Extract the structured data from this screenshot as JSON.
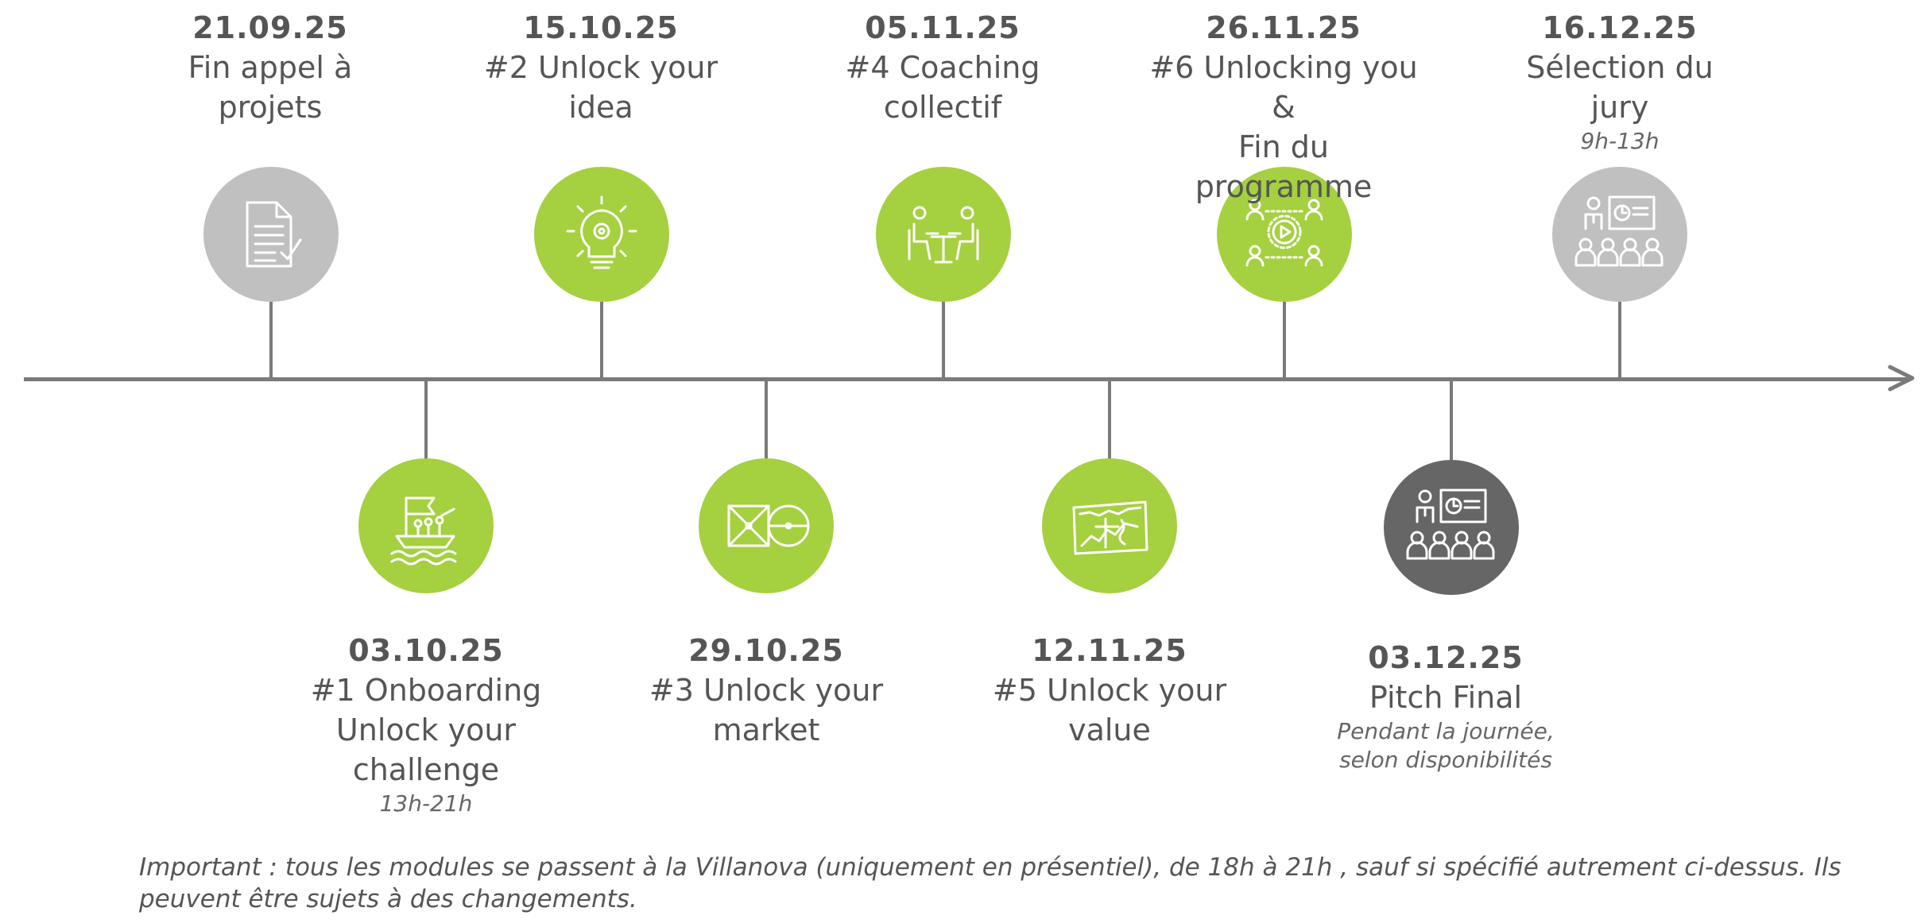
{
  "colors": {
    "green": "#a5d03f",
    "light_gray": "#c0c0c0",
    "dark_gray": "#666666",
    "axis": "#7a7a7a"
  },
  "events": [
    {
      "date": "21.09.25",
      "title": "Fin appel à\nprojets",
      "note": "",
      "icon": "document-check-icon",
      "color": "light_gray"
    },
    {
      "date": "03.10.25",
      "title": "#1 Onboarding\nUnlock your\nchallenge",
      "note": "13h-21h",
      "icon": "boat-crew-icon",
      "color": "green"
    },
    {
      "date": "15.10.25",
      "title": "#2 Unlock your\nidea",
      "note": "",
      "icon": "lightbulb-gear-icon",
      "color": "green"
    },
    {
      "date": "29.10.25",
      "title": "#3 Unlock your\nmarket",
      "note": "",
      "icon": "square-circle-targets-icon",
      "color": "green"
    },
    {
      "date": "05.11.25",
      "title": "#4 Coaching\ncollectif",
      "note": "",
      "icon": "meeting-table-icon",
      "color": "green"
    },
    {
      "date": "12.11.25",
      "title": "#5 Unlock your\nvalue",
      "note": "",
      "icon": "chart-board-icon",
      "color": "green"
    },
    {
      "date": "26.11.25",
      "title": "#6 Unlocking you &\nFin du programme",
      "note": "",
      "icon": "network-people-play-icon",
      "color": "green"
    },
    {
      "date": "03.12.25",
      "title": "Pitch Final",
      "note": "Pendant la journée,\nselon disponibilités",
      "icon": "presentation-audience-icon",
      "color": "dark_gray"
    },
    {
      "date": "16.12.25",
      "title": "Sélection du\njury",
      "note": "9h-13h",
      "icon": "presentation-audience-icon",
      "color": "light_gray"
    }
  ],
  "footnote": "Important : tous les modules se passent à la Villanova (uniquement en présentiel), de 18h à 21h , sauf si spécifié autrement ci-dessus. Ils peuvent être sujets à des changements."
}
